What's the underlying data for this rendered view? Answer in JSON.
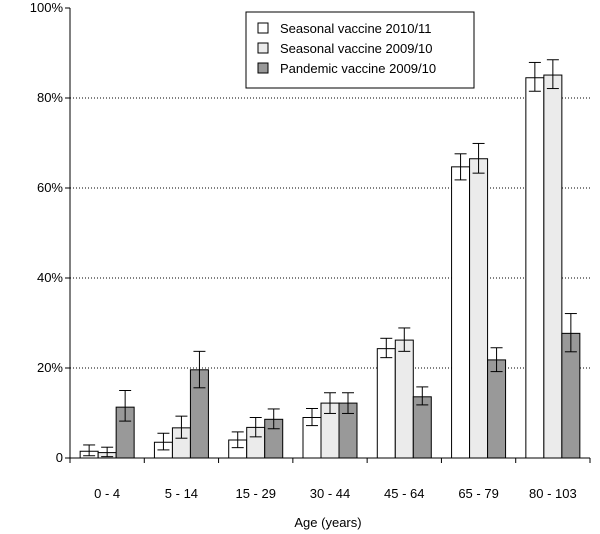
{
  "chart_data": {
    "type": "bar",
    "title": "",
    "xlabel": "Age (years)",
    "ylabel": "",
    "ylim": [
      0,
      100
    ],
    "y_ticks": [
      "0",
      "20%",
      "40%",
      "60%",
      "80%",
      "100%"
    ],
    "y_tick_values": [
      0,
      20,
      40,
      60,
      80,
      100
    ],
    "grid": "horizontal dotted",
    "legend_position": "top-center",
    "categories": [
      "0 - 4",
      "5 - 14",
      "15 - 29",
      "30 - 44",
      "45 - 64",
      "65 - 79",
      "80 - 103"
    ],
    "series": [
      {
        "name": "Seasonal vaccine 2010/11",
        "color": "#ffffff",
        "values": [
          1.5,
          3.5,
          4.0,
          9.0,
          24.3,
          64.7,
          84.5
        ],
        "error_low": [
          0.5,
          1.8,
          2.3,
          7.2,
          22.3,
          61.8,
          81.5
        ],
        "error_high": [
          2.9,
          5.5,
          5.8,
          11.0,
          26.6,
          67.6,
          87.9
        ]
      },
      {
        "name": "Seasonal vaccine 2009/10",
        "color": "#ebebeb",
        "values": [
          1.2,
          6.7,
          6.8,
          12.2,
          26.2,
          66.5,
          85.1
        ],
        "error_low": [
          0.3,
          4.4,
          4.7,
          9.9,
          23.7,
          63.3,
          82.1
        ],
        "error_high": [
          2.4,
          9.3,
          9.0,
          14.5,
          28.9,
          69.9,
          88.5
        ]
      },
      {
        "name": "Pandemic vaccine 2009/10",
        "color": "#999999",
        "values": [
          11.3,
          19.6,
          8.6,
          12.2,
          13.6,
          21.8,
          27.7
        ],
        "error_low": [
          8.2,
          15.6,
          6.5,
          9.9,
          11.8,
          19.2,
          23.6
        ],
        "error_high": [
          15.0,
          23.7,
          10.9,
          14.5,
          15.8,
          24.5,
          32.1
        ]
      }
    ]
  }
}
